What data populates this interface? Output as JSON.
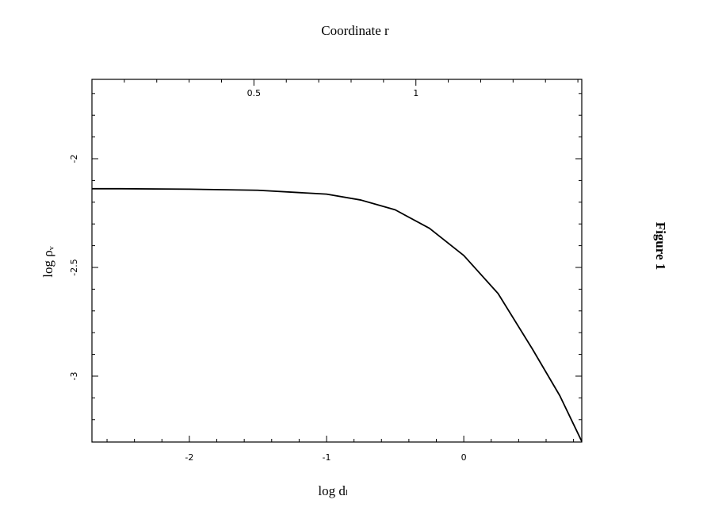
{
  "chart_data": {
    "type": "line",
    "title": "Coordinate r",
    "xlabel": "log dₗ",
    "ylabel": "log ρᵥ",
    "figure_label": "Figure 1",
    "x": [
      -2.71,
      -2.5,
      -2,
      -1.5,
      -1,
      -0.75,
      -0.5,
      -0.25,
      0,
      0.25,
      0.5,
      0.7,
      0.86
    ],
    "series": [
      {
        "color": "#000000",
        "values": [
          -2.138,
          -2.138,
          -2.14,
          -2.145,
          -2.163,
          -2.19,
          -2.235,
          -2.32,
          -2.445,
          -2.62,
          -2.875,
          -3.09,
          -3.3
        ]
      }
    ],
    "xlim": [
      -2.71,
      0.86
    ],
    "xticks": [
      -2,
      -1,
      0
    ],
    "xminor_ticks": [
      -2.6,
      -2.4,
      -2.2,
      -1.8,
      -1.6,
      -1.4,
      -1.2,
      -0.8,
      -0.6,
      -0.4,
      -0.2,
      0.2,
      0.4,
      0.6,
      0.8
    ],
    "ylim": [
      -3.303,
      -1.635
    ],
    "yticks": [
      -2,
      -2.5,
      -3
    ],
    "yminor_ticks": [
      -1.7,
      -1.8,
      -1.9,
      -2.1,
      -2.2,
      -2.3,
      -2.4,
      -2.6,
      -2.7,
      -2.8,
      -2.9,
      -3.1,
      -3.2
    ],
    "x2lim": [
      0,
      1.512
    ],
    "x2ticks": [
      0.5,
      1
    ],
    "x2minor_ticks": [
      0.1,
      0.2,
      0.3,
      0.4,
      0.6,
      0.7,
      0.8,
      0.9,
      1.1,
      1.2,
      1.3,
      1.4,
      1.5
    ]
  }
}
